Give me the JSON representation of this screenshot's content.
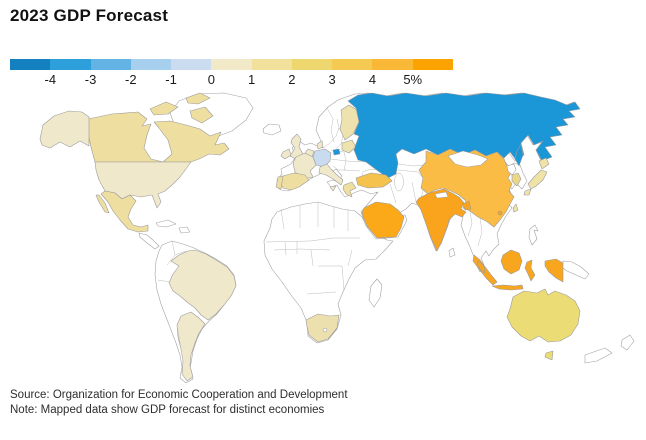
{
  "title": "2023 GDP Forecast",
  "legend": {
    "tick_labels": [
      "-4",
      "-3",
      "-2",
      "-1",
      "0",
      "1",
      "2",
      "3",
      "4",
      "5%"
    ],
    "segment_colors": [
      "#1480bf",
      "#2da0dc",
      "#63b3e4",
      "#a6d0ed",
      "#cbdcf0",
      "#f1e9c8",
      "#f1e19d",
      "#edd76e",
      "#f5ca52",
      "#f9b835",
      "#fda300"
    ]
  },
  "footer": {
    "source": "Source: Organization for Economic Cooperation and Development",
    "note": "Note: Mapped data show GDP forecast for distinct economies"
  },
  "chart_data": {
    "type": "heatmap",
    "subtype": "choropleth-world-map",
    "title": "2023 GDP Forecast",
    "unit": "GDP growth forecast for 2023, %",
    "scale_domain": [
      -4,
      5
    ],
    "scale_ticks": [
      -4,
      -3,
      -2,
      -1,
      0,
      1,
      2,
      3,
      4,
      5
    ],
    "legend_position": "top",
    "no_data_color": "#ffffff",
    "regions": [
      {
        "id": "russia",
        "name": "Russia",
        "bucket": "-4 to -3",
        "value": -4,
        "color": "#1b96d6"
      },
      {
        "id": "germany",
        "name": "Germany",
        "bucket": "-1 to 0",
        "value": -0.5,
        "color": "#c9dbef"
      },
      {
        "id": "usa",
        "name": "United States",
        "bucket": "0 to 1",
        "value": 0.5,
        "color": "#f0e8cb"
      },
      {
        "id": "uk",
        "name": "United Kingdom",
        "bucket": "0 to 1",
        "value": 0.5,
        "color": "#f0e8cb"
      },
      {
        "id": "ireland",
        "name": "Ireland",
        "bucket": "0 to 1",
        "value": 0.5,
        "color": "#f0e8cb"
      },
      {
        "id": "france",
        "name": "France",
        "bucket": "0 to 1",
        "value": 0.5,
        "color": "#f0e8cb"
      },
      {
        "id": "italy",
        "name": "Italy",
        "bucket": "0 to 1",
        "value": 0.5,
        "color": "#f0e8cb"
      },
      {
        "id": "denmark",
        "name": "Denmark",
        "bucket": "0 to 1",
        "value": 0.5,
        "color": "#f0e8cb"
      },
      {
        "id": "benelux",
        "name": "Netherlands/Belgium",
        "bucket": "0 to 1",
        "value": 0.5,
        "color": "#f0e8cb"
      },
      {
        "id": "brazil",
        "name": "Brazil",
        "bucket": "0 to 1",
        "value": 0.5,
        "color": "#f0e8cb"
      },
      {
        "id": "argentina",
        "name": "Argentina",
        "bucket": "0 to 1",
        "value": 0.5,
        "color": "#f0e8cb"
      },
      {
        "id": "canada",
        "name": "Canada",
        "bucket": "1 to 2",
        "value": 1.5,
        "color": "#eedfa0"
      },
      {
        "id": "mexico",
        "name": "Mexico",
        "bucket": "1 to 2",
        "value": 1.5,
        "color": "#eedfa0"
      },
      {
        "id": "spain",
        "name": "Spain",
        "bucket": "1 to 2",
        "value": 1.5,
        "color": "#eedfa0"
      },
      {
        "id": "portugal",
        "name": "Portugal",
        "bucket": "1 to 2",
        "value": 1.5,
        "color": "#eedfa0"
      },
      {
        "id": "greece",
        "name": "Greece",
        "bucket": "1 to 2",
        "value": 1.5,
        "color": "#eedfa0"
      },
      {
        "id": "finland",
        "name": "Finland",
        "bucket": "1 to 2",
        "value": 1.5,
        "color": "#eee2ae"
      },
      {
        "id": "baltics",
        "name": "Baltic states",
        "bucket": "1 to 2",
        "value": 1.5,
        "color": "#eee2ae"
      },
      {
        "id": "japan",
        "name": "Japan",
        "bucket": "1 to 2",
        "value": 1.5,
        "color": "#f0e3a8"
      },
      {
        "id": "taiwan",
        "name": "Taiwan",
        "bucket": "1 to 2",
        "value": 1.5,
        "color": "#f0e3a8"
      },
      {
        "id": "south-africa",
        "name": "South Africa",
        "bucket": "1 to 2",
        "value": 1.5,
        "color": "#ece0ae"
      },
      {
        "id": "south-korea",
        "name": "South Korea",
        "bucket": "2 to 3",
        "value": 2.5,
        "color": "#ebd78a"
      },
      {
        "id": "australia",
        "name": "Australia",
        "bucket": "2 to 3",
        "value": 2.5,
        "color": "#ecdc75"
      },
      {
        "id": "turkey",
        "name": "Turkey",
        "bucket": "3 to 4",
        "value": 3.5,
        "color": "#f5c24d"
      },
      {
        "id": "china",
        "name": "China",
        "bucket": "4 to 5",
        "value": 4.5,
        "color": "#fbbc46"
      },
      {
        "id": "indonesia",
        "name": "Indonesia",
        "bucket": "4 to 5",
        "value": 4.8,
        "color": "#f9a61f"
      },
      {
        "id": "malaysia",
        "name": "Malaysia",
        "bucket": "4 to 5",
        "value": 4.5,
        "color": "#f9a61f"
      },
      {
        "id": "saudi-arabia",
        "name": "Saudi Arabia",
        "bucket": "above 5",
        "value": 5.5,
        "color": "#fba919"
      },
      {
        "id": "india",
        "name": "India",
        "bucket": "above 5",
        "value": 5.5,
        "color": "#faa41d"
      },
      {
        "id": "bangladesh",
        "name": "Bangladesh",
        "bucket": "above 5",
        "value": 5.5,
        "color": "#faa41d"
      },
      {
        "id": "hong-kong",
        "name": "Hong Kong",
        "bucket": "above 5",
        "value": 5.5,
        "color": "#faa41d"
      }
    ]
  }
}
